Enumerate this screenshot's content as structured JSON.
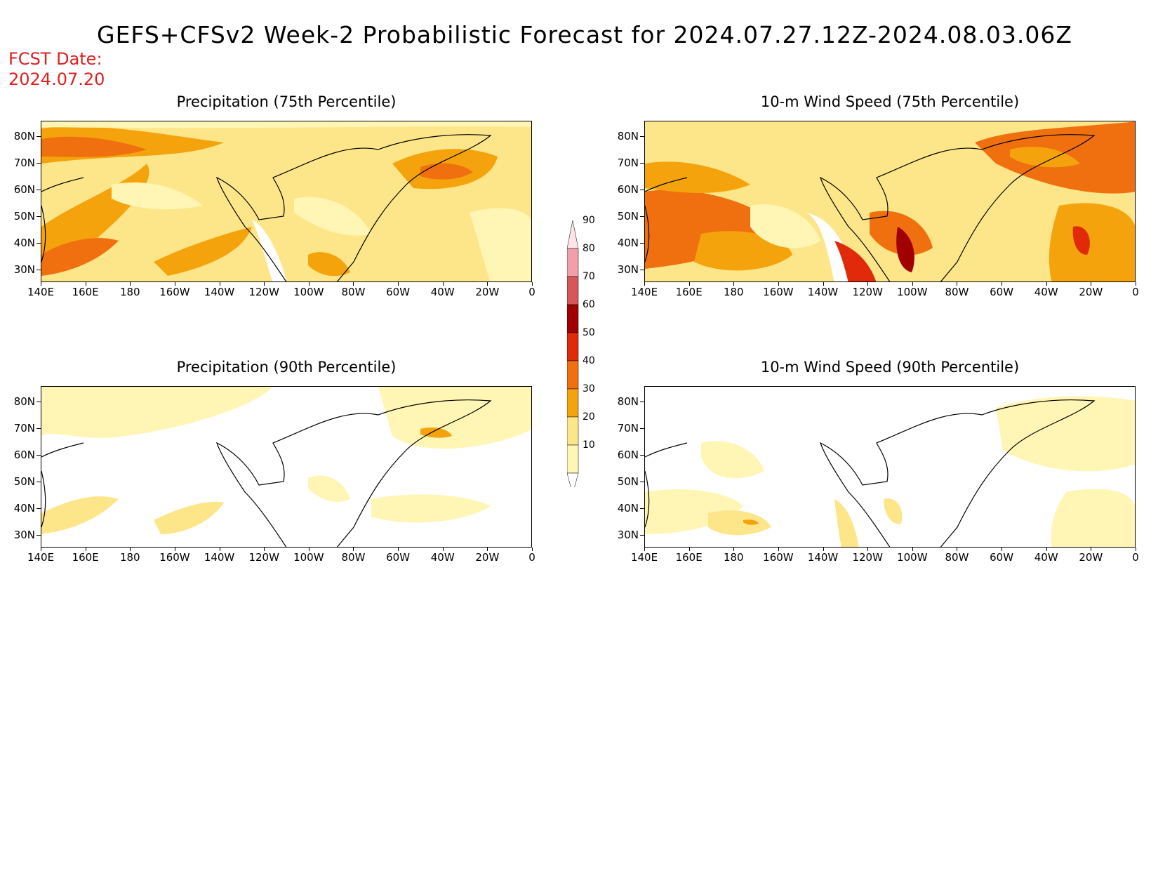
{
  "header": {
    "title": "GEFS+CFSv2 Week-2 Probabilistic Forecast for 2024.07.27.12Z-2024.08.03.06Z",
    "fcst_label": "FCST Date:",
    "fcst_date": "2024.07.20"
  },
  "panels": [
    {
      "id": "precip75",
      "title": "Precipitation (75th Percentile)"
    },
    {
      "id": "wind75",
      "title": "10-m Wind Speed (75th Percentile)"
    },
    {
      "id": "precip90",
      "title": "Precipitation (90th Percentile)"
    },
    {
      "id": "wind90",
      "title": "10-m Wind Speed (90th Percentile)"
    }
  ],
  "axes": {
    "lat_labels": [
      "80N",
      "70N",
      "60N",
      "50N",
      "40N",
      "30N"
    ],
    "lon_labels": [
      "140E",
      "160E",
      "180",
      "160W",
      "140W",
      "120W",
      "100W",
      "80W",
      "60W",
      "40W",
      "20W",
      "0"
    ]
  },
  "colorbar": {
    "levels": [
      "10",
      "20",
      "30",
      "40",
      "50",
      "60",
      "70",
      "80",
      "90"
    ],
    "colors": [
      "#fff5b4",
      "#fde68a",
      "#f4a30c",
      "#f07010",
      "#e02a0a",
      "#a10000",
      "#d6565a",
      "#f0a0a8",
      "#fde4e8"
    ]
  }
}
